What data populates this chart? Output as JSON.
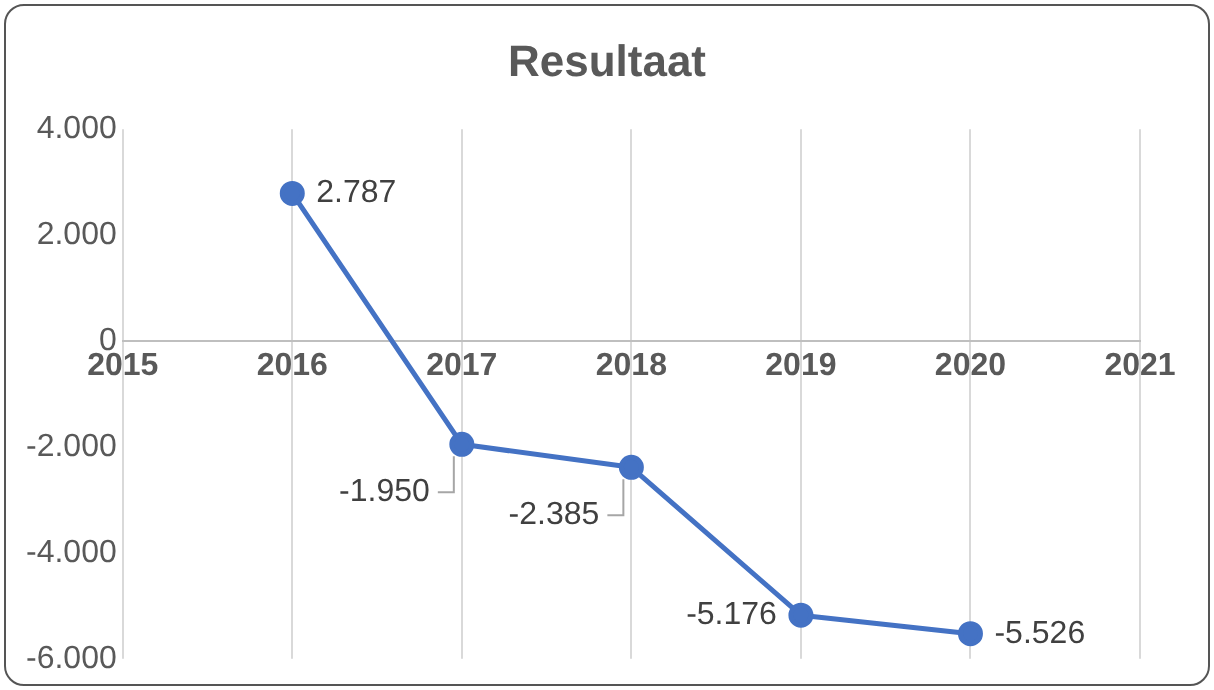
{
  "chart_data": {
    "type": "line",
    "title": "Resultaat",
    "x": [
      2016,
      2017,
      2018,
      2019,
      2020
    ],
    "series": [
      {
        "color": "#4472c4",
        "values": [
          2787,
          -1950,
          -2385,
          -5176,
          -5526
        ],
        "value_labels": [
          "2.787",
          "-1.950",
          "-2.385",
          "-5.176",
          "-5.526"
        ]
      }
    ],
    "xlim": [
      2015,
      2021
    ],
    "xticks": [
      2015,
      2016,
      2017,
      2018,
      2019,
      2020,
      2021
    ],
    "ylim": [
      -6000,
      4000
    ],
    "yticks": [
      {
        "value": -6000,
        "label": "-6.000"
      },
      {
        "value": -4000,
        "label": "-4.000"
      },
      {
        "value": -2000,
        "label": "-2.000"
      },
      {
        "value": 0,
        "label": "0"
      },
      {
        "value": 2000,
        "label": "2.000"
      },
      {
        "value": 4000,
        "label": "4.000"
      }
    ],
    "grid": "x",
    "legend": false,
    "marker": "circle",
    "line_style": "solid"
  }
}
